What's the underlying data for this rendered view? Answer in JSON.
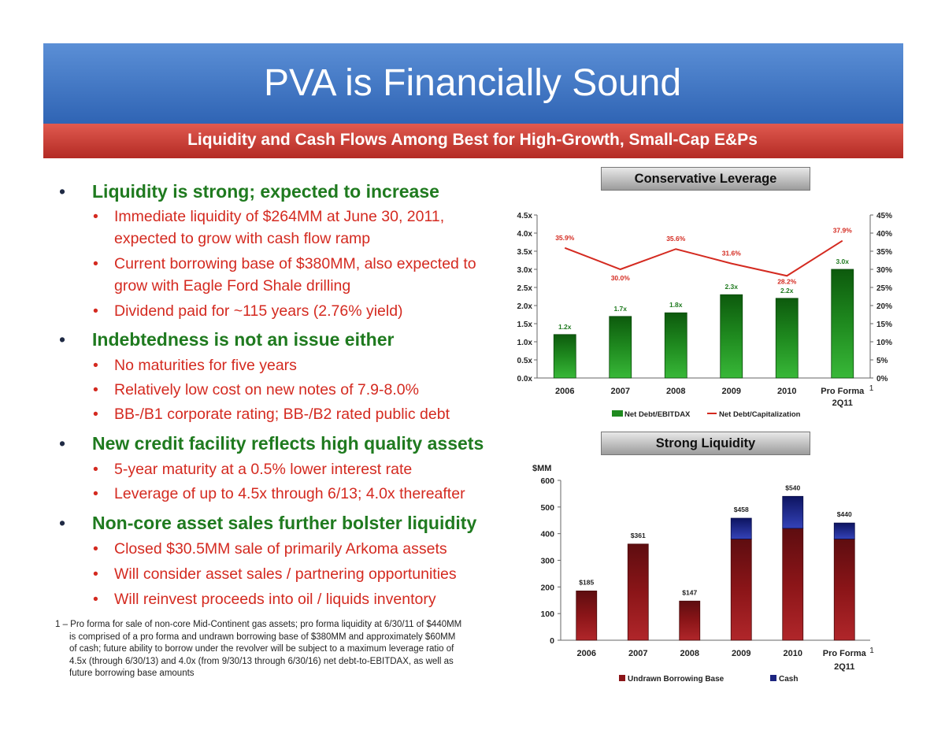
{
  "slide": {
    "title": "PVA is Financially Sound",
    "subtitle": "Liquidity and Cash Flows Among Best for High-Growth, Small-Cap E&Ps",
    "bullet_symbol": "•",
    "bullets": [
      {
        "text": "Liquidity is strong; expected to increase",
        "subs": [
          {
            "lines": [
              "Immediate liquidity of $264MM at June 30, 2011,",
              "expected to grow with cash flow ramp"
            ]
          },
          {
            "lines": [
              "Current borrowing base of $380MM, also expected to",
              "grow with Eagle Ford Shale drilling"
            ]
          },
          {
            "lines": [
              "Dividend paid for ~115 years (2.76% yield)"
            ]
          }
        ]
      },
      {
        "text": "Indebtedness is not an issue either",
        "subs": [
          {
            "lines": [
              "No maturities for five years"
            ]
          },
          {
            "lines": [
              "Relatively low cost on new notes of 7.9-8.0%"
            ]
          },
          {
            "lines": [
              "BB-/B1 corporate rating; BB-/B2 rated public debt"
            ]
          }
        ]
      },
      {
        "text": "New credit facility reflects high quality assets",
        "subs": [
          {
            "lines": [
              "5-year maturity at a 0.5% lower interest rate"
            ]
          },
          {
            "lines": [
              "Leverage of up to 4.5x through 6/13; 4.0x thereafter"
            ]
          }
        ]
      },
      {
        "text": "Non-core asset sales further bolster liquidity",
        "subs": [
          {
            "lines": [
              "Closed $30.5MM sale of primarily Arkoma assets"
            ]
          },
          {
            "lines": [
              "Will consider asset sales / partnering opportunities"
            ]
          },
          {
            "lines": [
              "Will reinvest proceeds into oil / liquids inventory"
            ]
          }
        ]
      }
    ],
    "footnote": {
      "first": "1 – Pro forma for sale of non-core Mid-Continent gas assets; pro forma liquidity at 6/30/11 of $440MM",
      "rest": [
        "is comprised of a pro forma and undrawn borrowing base of $380MM and approximately $60MM",
        "of cash; future ability to borrow under the revolver will be subject to a maximum leverage ratio  of",
        "4.5x (through 6/30/13) and 4.0x (from 9/30/13 through 6/30/16) net debt-to-EBITDAX, as well as",
        "future borrowing base amounts"
      ]
    }
  },
  "colors": {
    "title_bar": "#2f64b4",
    "subtitle_bar": "#b42a24",
    "bullet_green": "#1f7a1f",
    "bullet_red": "#d42a20",
    "bar_green": "#1f8a1f",
    "line_red": "#d42a20",
    "bar_maroon": "#8b1518",
    "bar_navy": "#1c2580"
  },
  "chart_data": [
    {
      "type": "bar",
      "title": "Conservative Leverage",
      "categories": [
        [
          "2006"
        ],
        [
          "2007"
        ],
        [
          "2008"
        ],
        [
          "2009"
        ],
        [
          "2010"
        ],
        [
          "Pro Forma",
          "2Q11"
        ]
      ],
      "category_marker": "1",
      "series": [
        {
          "name": "Net Debt/EBITDAX",
          "kind": "bar",
          "axis": "left",
          "values": [
            1.2,
            1.7,
            1.8,
            2.3,
            2.2,
            3.0
          ],
          "labels": [
            "1.2x",
            "1.7x",
            "1.8x",
            "2.3x",
            "2.2x",
            "3.0x"
          ]
        },
        {
          "name": "Net Debt/Capitalization",
          "kind": "line",
          "axis": "right",
          "values": [
            35.9,
            30.0,
            35.6,
            31.6,
            28.2,
            37.9
          ],
          "labels": [
            "35.9%",
            "30.0%",
            "35.6%",
            "31.6%",
            "28.2%",
            "37.9%"
          ]
        }
      ],
      "y_left": {
        "range": [
          0,
          4.5
        ],
        "ticks": [
          0,
          0.5,
          1,
          1.5,
          2,
          2.5,
          3,
          3.5,
          4,
          4.5
        ],
        "tick_labels": [
          "0.0x",
          "0.5x",
          "1.0x",
          "1.5x",
          "2.0x",
          "2.5x",
          "3.0x",
          "3.5x",
          "4.0x",
          "4.5x"
        ]
      },
      "y_right": {
        "range": [
          0,
          45
        ],
        "ticks": [
          0,
          5,
          10,
          15,
          20,
          25,
          30,
          35,
          40,
          45
        ],
        "tick_labels": [
          "0%",
          "5%",
          "10%",
          "15%",
          "20%",
          "25%",
          "30%",
          "35%",
          "40%",
          "45%"
        ]
      },
      "legend": "bottom",
      "grid": false
    },
    {
      "type": "bar",
      "stacked": true,
      "title": "Strong Liquidity",
      "ylabel": "$MM",
      "categories": [
        [
          "2006"
        ],
        [
          "2007"
        ],
        [
          "2008"
        ],
        [
          "2009"
        ],
        [
          "2010"
        ],
        [
          "Pro Forma",
          "2Q11"
        ]
      ],
      "category_marker": "1",
      "series": [
        {
          "name": "Undrawn Borrowing Base",
          "values": [
            185,
            361,
            147,
            380,
            420,
            380
          ]
        },
        {
          "name": "Cash",
          "values": [
            0,
            0,
            0,
            78,
            120,
            60
          ]
        }
      ],
      "totals": [
        185,
        361,
        147,
        458,
        540,
        440
      ],
      "total_labels": [
        "$185",
        "$361",
        "$147",
        "$458",
        "$540",
        "$440"
      ],
      "ylim": [
        0,
        600
      ],
      "y_ticks": [
        0,
        100,
        200,
        300,
        400,
        500,
        600
      ],
      "legend": "bottom",
      "grid": false
    }
  ]
}
